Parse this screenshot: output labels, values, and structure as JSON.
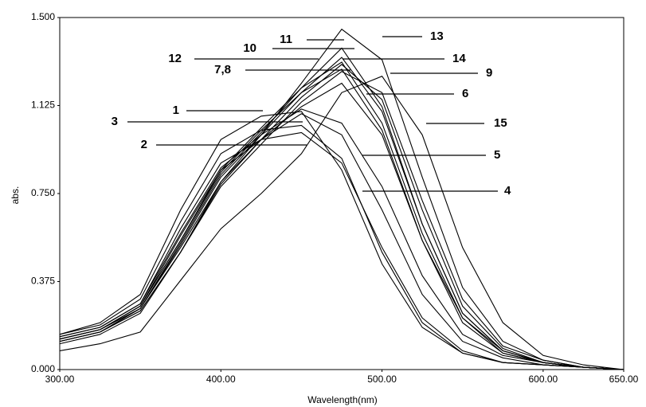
{
  "chart_data": {
    "type": "line",
    "x_label": "Wavelength(nm)",
    "y_label": "abs.",
    "x": [
      300,
      325,
      350,
      375,
      400,
      425,
      450,
      475,
      500,
      525,
      550,
      575,
      600,
      625,
      650
    ],
    "xlim": [
      300,
      650
    ],
    "ylim": [
      0,
      1.5
    ],
    "xticks": [
      {
        "value": 300,
        "label": "300.00"
      },
      {
        "value": 400,
        "label": "400.00"
      },
      {
        "value": 500,
        "label": "500.00"
      },
      {
        "value": 600,
        "label": "600.00"
      },
      {
        "value": 650,
        "label": "650.00"
      }
    ],
    "yticks": [
      {
        "value": 0,
        "label": "0.000"
      },
      {
        "value": 0.375,
        "label": "0.375"
      },
      {
        "value": 0.75,
        "label": "0.750"
      },
      {
        "value": 1.125,
        "label": "1.125"
      },
      {
        "value": 1.5,
        "label": "1.500"
      }
    ],
    "color": "#000000",
    "series": [
      {
        "name": "1",
        "values": [
          0.15,
          0.2,
          0.32,
          0.68,
          0.98,
          1.08,
          1.1,
          0.85,
          0.45,
          0.18,
          0.07,
          0.03,
          0.02,
          0.01,
          0.0
        ]
      },
      {
        "name": "2",
        "values": [
          0.14,
          0.18,
          0.28,
          0.6,
          0.88,
          0.98,
          1.01,
          0.88,
          0.52,
          0.22,
          0.08,
          0.03,
          0.02,
          0.01,
          0.0
        ]
      },
      {
        "name": "3",
        "values": [
          0.15,
          0.19,
          0.3,
          0.63,
          0.92,
          1.02,
          1.04,
          0.9,
          0.5,
          0.2,
          0.07,
          0.03,
          0.02,
          0.01,
          0.0
        ]
      },
      {
        "name": "4",
        "values": [
          0.13,
          0.17,
          0.27,
          0.57,
          0.85,
          0.98,
          1.09,
          1.0,
          0.68,
          0.32,
          0.12,
          0.05,
          0.02,
          0.01,
          0.0
        ]
      },
      {
        "name": "5",
        "values": [
          0.14,
          0.18,
          0.28,
          0.58,
          0.86,
          1.0,
          1.11,
          1.05,
          0.78,
          0.4,
          0.15,
          0.06,
          0.03,
          0.01,
          0.0
        ]
      },
      {
        "name": "6",
        "values": [
          0.13,
          0.17,
          0.26,
          0.52,
          0.8,
          0.98,
          1.12,
          1.22,
          1.0,
          0.55,
          0.22,
          0.08,
          0.03,
          0.01,
          0.0
        ]
      },
      {
        "name": "7,8",
        "values": [
          0.13,
          0.17,
          0.27,
          0.55,
          0.84,
          1.02,
          1.18,
          1.28,
          1.02,
          0.55,
          0.2,
          0.07,
          0.03,
          0.01,
          0.0
        ]
      },
      {
        "name": "9",
        "values": [
          0.12,
          0.16,
          0.25,
          0.5,
          0.78,
          0.96,
          1.14,
          1.27,
          1.18,
          0.72,
          0.3,
          0.1,
          0.04,
          0.01,
          0.0
        ]
      },
      {
        "name": "10",
        "values": [
          0.12,
          0.16,
          0.26,
          0.53,
          0.82,
          1.0,
          1.18,
          1.33,
          1.1,
          0.62,
          0.24,
          0.08,
          0.03,
          0.01,
          0.0
        ]
      },
      {
        "name": "11",
        "values": [
          0.12,
          0.16,
          0.26,
          0.54,
          0.83,
          1.01,
          1.2,
          1.37,
          1.12,
          0.62,
          0.24,
          0.08,
          0.03,
          0.01,
          0.0
        ]
      },
      {
        "name": "12",
        "values": [
          0.13,
          0.17,
          0.27,
          0.55,
          0.85,
          1.03,
          1.2,
          1.31,
          1.05,
          0.58,
          0.22,
          0.07,
          0.03,
          0.01,
          0.0
        ]
      },
      {
        "name": "13",
        "values": [
          0.11,
          0.15,
          0.24,
          0.5,
          0.8,
          1.0,
          1.22,
          1.45,
          1.32,
          0.82,
          0.35,
          0.12,
          0.04,
          0.01,
          0.0
        ]
      },
      {
        "name": "14",
        "values": [
          0.12,
          0.16,
          0.25,
          0.5,
          0.79,
          0.98,
          1.16,
          1.3,
          1.15,
          0.68,
          0.27,
          0.09,
          0.03,
          0.01,
          0.0
        ]
      },
      {
        "name": "15",
        "values": [
          0.08,
          0.11,
          0.16,
          0.38,
          0.6,
          0.75,
          0.92,
          1.18,
          1.25,
          1.0,
          0.52,
          0.2,
          0.06,
          0.02,
          0.0
        ]
      }
    ]
  }
}
